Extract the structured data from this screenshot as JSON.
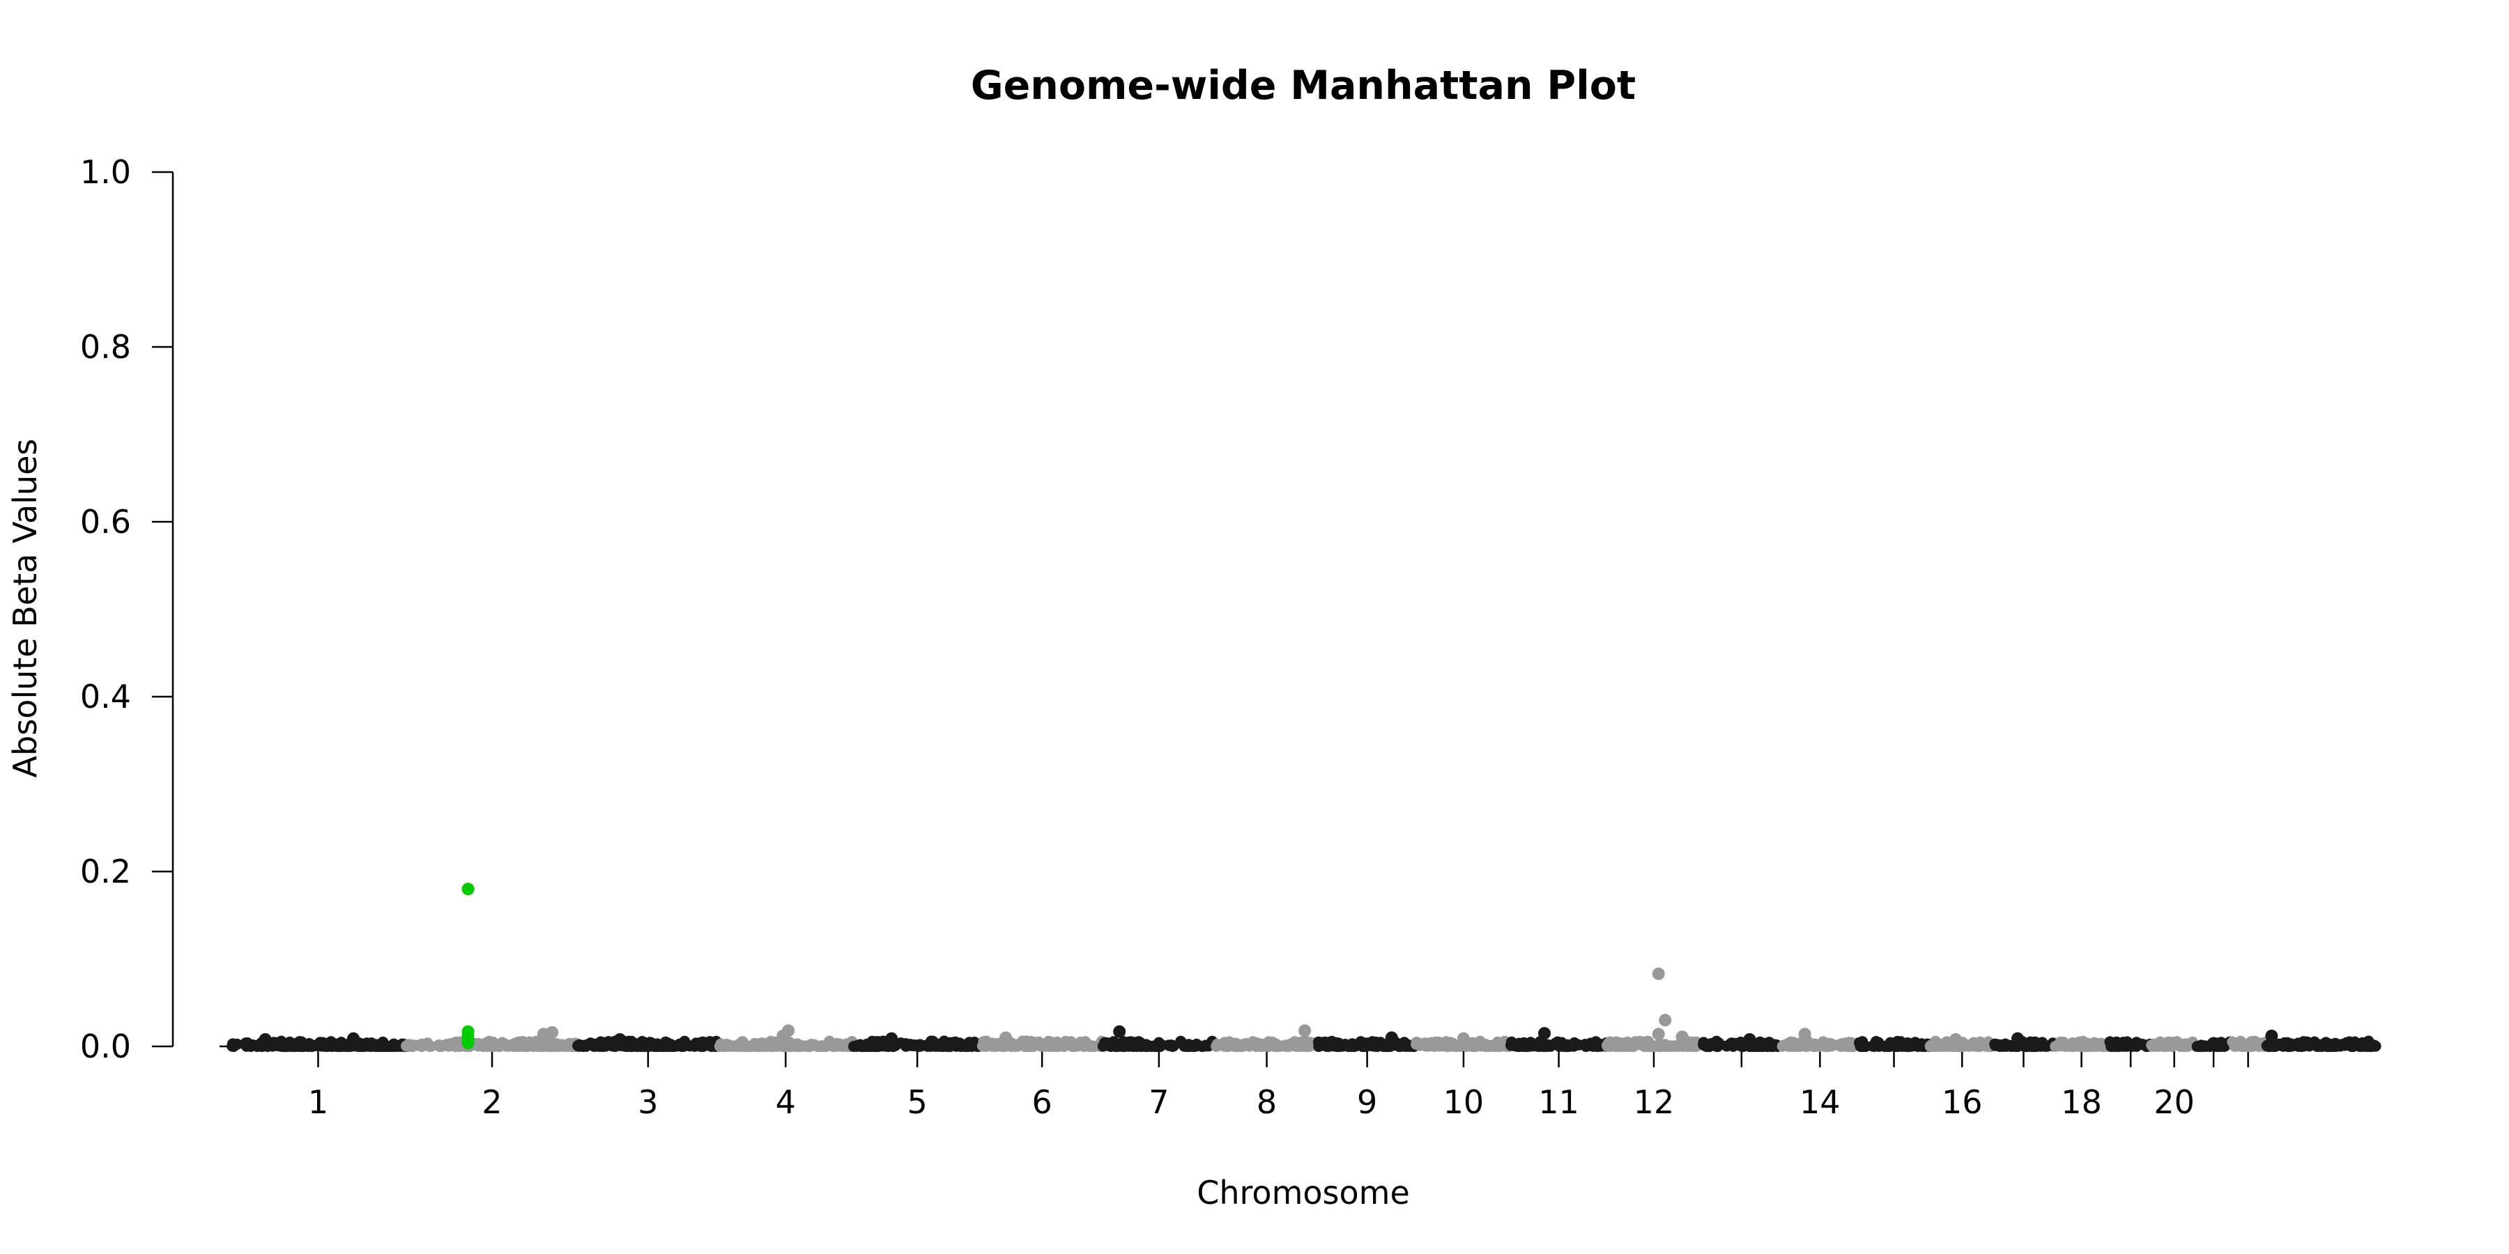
{
  "chart_data": {
    "type": "scatter",
    "title": "Genome-wide Manhattan Plot",
    "xlabel": "Chromosome",
    "ylabel": "Absolute Beta Values",
    "ylim": [
      0,
      1.0
    ],
    "y_ticks": [
      "0.0",
      "0.2",
      "0.4",
      "0.6",
      "0.8",
      "1.0"
    ],
    "grid": false,
    "legend": "none",
    "colors": {
      "odd": "#1a1a1a",
      "even": "#999999",
      "highlight": "#00cc00"
    },
    "chromosomes": [
      {
        "chr": "1",
        "start": 0.0,
        "end": 248.9,
        "tick_label": "1"
      },
      {
        "chr": "2",
        "start": 248.9,
        "end": 491.1,
        "tick_label": "2"
      },
      {
        "chr": "3",
        "start": 491.1,
        "end": 689.4,
        "tick_label": "3"
      },
      {
        "chr": "4",
        "start": 689.4,
        "end": 879.6,
        "tick_label": "4"
      },
      {
        "chr": "5",
        "start": 879.6,
        "end": 1061.1,
        "tick_label": "5"
      },
      {
        "chr": "6",
        "start": 1061.1,
        "end": 1231.9,
        "tick_label": "6"
      },
      {
        "chr": "7",
        "start": 1231.9,
        "end": 1391.2,
        "tick_label": "7"
      },
      {
        "chr": "8",
        "start": 1391.2,
        "end": 1536.3,
        "tick_label": "8"
      },
      {
        "chr": "9",
        "start": 1536.3,
        "end": 1674.7,
        "tick_label": "9"
      },
      {
        "chr": "10",
        "start": 1674.7,
        "end": 1808.5,
        "tick_label": "10"
      },
      {
        "chr": "11",
        "start": 1808.5,
        "end": 1943.6,
        "tick_label": "11"
      },
      {
        "chr": "12",
        "start": 1943.6,
        "end": 2076.9,
        "tick_label": "12"
      },
      {
        "chr": "13",
        "start": 2076.9,
        "end": 2191.3,
        "tick_label": ""
      },
      {
        "chr": "14",
        "start": 2191.3,
        "end": 2298.3,
        "tick_label": "14"
      },
      {
        "chr": "15",
        "start": 2298.3,
        "end": 2400.3,
        "tick_label": ""
      },
      {
        "chr": "16",
        "start": 2400.3,
        "end": 2490.6,
        "tick_label": "16"
      },
      {
        "chr": "17",
        "start": 2490.6,
        "end": 2573.9,
        "tick_label": ""
      },
      {
        "chr": "18",
        "start": 2573.9,
        "end": 2654.2,
        "tick_label": "18"
      },
      {
        "chr": "19",
        "start": 2654.2,
        "end": 2712.8,
        "tick_label": ""
      },
      {
        "chr": "20",
        "start": 2712.8,
        "end": 2777.2,
        "tick_label": "20"
      },
      {
        "chr": "21",
        "start": 2777.2,
        "end": 2823.9,
        "tick_label": ""
      },
      {
        "chr": "22",
        "start": 2823.9,
        "end": 2874.7,
        "tick_label": ""
      },
      {
        "chr": "23",
        "start": 2874.7,
        "end": 3030.7,
        "tick_label": ""
      }
    ],
    "points": [
      {
        "chr": "2",
        "pos": 0.36,
        "y": 0.18,
        "highlight": true
      },
      {
        "chr": "2",
        "pos": 0.36,
        "y": 0.017,
        "highlight": true
      },
      {
        "chr": "2",
        "pos": 0.36,
        "y": 0.012,
        "highlight": true
      },
      {
        "chr": "2",
        "pos": 0.36,
        "y": 0.008,
        "highlight": true
      },
      {
        "chr": "2",
        "pos": 0.36,
        "y": 0.004,
        "highlight": true
      },
      {
        "chr": "12",
        "pos": 0.55,
        "y": 0.083
      },
      {
        "chr": "12",
        "pos": 0.62,
        "y": 0.03
      },
      {
        "chr": "12",
        "pos": 0.55,
        "y": 0.014
      },
      {
        "chr": "12",
        "pos": 0.8,
        "y": 0.011
      },
      {
        "chr": "4",
        "pos": 0.52,
        "y": 0.018
      },
      {
        "chr": "4",
        "pos": 0.48,
        "y": 0.012
      },
      {
        "chr": "7",
        "pos": 0.15,
        "y": 0.017
      },
      {
        "chr": "8",
        "pos": 0.87,
        "y": 0.018
      },
      {
        "chr": "11",
        "pos": 0.35,
        "y": 0.015
      },
      {
        "chr": "14",
        "pos": 0.3,
        "y": 0.014
      },
      {
        "chr": "3",
        "pos": 0.3,
        "y": 0.008
      },
      {
        "chr": "23",
        "pos": 0.05,
        "y": 0.012
      },
      {
        "chr": "2",
        "pos": 0.8,
        "y": 0.014
      },
      {
        "chr": "2",
        "pos": 0.85,
        "y": 0.016
      },
      {
        "chr": "1",
        "pos": 0.2,
        "y": 0.008
      },
      {
        "chr": "1",
        "pos": 0.7,
        "y": 0.009
      },
      {
        "chr": "5",
        "pos": 0.3,
        "y": 0.009
      },
      {
        "chr": "6",
        "pos": 0.2,
        "y": 0.01
      },
      {
        "chr": "9",
        "pos": 0.75,
        "y": 0.01
      },
      {
        "chr": "10",
        "pos": 0.5,
        "y": 0.009
      },
      {
        "chr": "13",
        "pos": 0.6,
        "y": 0.008
      },
      {
        "chr": "16",
        "pos": 0.4,
        "y": 0.008
      },
      {
        "chr": "17",
        "pos": 0.4,
        "y": 0.009
      }
    ]
  }
}
